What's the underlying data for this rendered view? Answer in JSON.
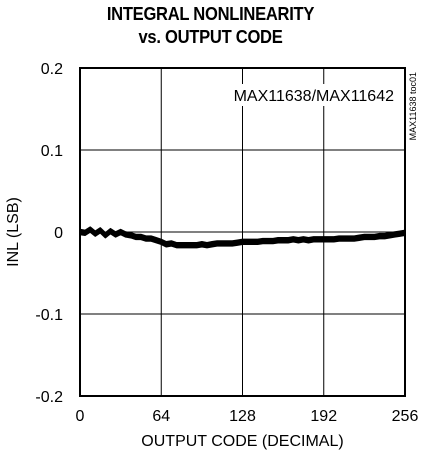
{
  "chart_data": {
    "type": "line",
    "title_lines": [
      "INTEGRAL NONLINEARITY",
      "vs. OUTPUT CODE"
    ],
    "xlabel": "OUTPUT CODE (DECIMAL)",
    "ylabel": "INL (LSB)",
    "xlim": [
      0,
      256
    ],
    "ylim": [
      -0.2,
      0.2
    ],
    "x_ticks": [
      0,
      64,
      128,
      192,
      256
    ],
    "x_tick_labels": [
      "0",
      "64",
      "128",
      "192",
      "256"
    ],
    "y_ticks": [
      0.2,
      0.1,
      0,
      -0.1,
      -0.2
    ],
    "y_tick_labels": [
      "0.2",
      "0.1",
      "0",
      "-0.1",
      "-0.2"
    ],
    "grid": true,
    "legend": "MAX11638/MAX11642",
    "side_label": "MAX11638 toc01",
    "series": [
      {
        "x": [
          0,
          4,
          8,
          12,
          16,
          20,
          24,
          28,
          32,
          36,
          40,
          44,
          48,
          52,
          56,
          60,
          64,
          68,
          72,
          76,
          80,
          84,
          88,
          92,
          96,
          100,
          104,
          108,
          112,
          116,
          120,
          124,
          128,
          132,
          136,
          140,
          144,
          148,
          152,
          156,
          160,
          164,
          168,
          172,
          176,
          180,
          184,
          188,
          192,
          196,
          200,
          204,
          208,
          212,
          216,
          220,
          224,
          228,
          232,
          236,
          240,
          244,
          248,
          252,
          256
        ],
        "y": [
          0.0,
          -0.001,
          0.003,
          -0.002,
          0.002,
          -0.004,
          0.001,
          -0.003,
          0.0,
          -0.003,
          -0.004,
          -0.006,
          -0.006,
          -0.008,
          -0.008,
          -0.01,
          -0.012,
          -0.015,
          -0.014,
          -0.016,
          -0.016,
          -0.016,
          -0.016,
          -0.016,
          -0.015,
          -0.016,
          -0.015,
          -0.014,
          -0.014,
          -0.014,
          -0.014,
          -0.013,
          -0.012,
          -0.012,
          -0.012,
          -0.012,
          -0.011,
          -0.011,
          -0.011,
          -0.01,
          -0.01,
          -0.01,
          -0.009,
          -0.01,
          -0.009,
          -0.01,
          -0.009,
          -0.009,
          -0.009,
          -0.009,
          -0.009,
          -0.008,
          -0.008,
          -0.008,
          -0.008,
          -0.007,
          -0.006,
          -0.006,
          -0.006,
          -0.005,
          -0.005,
          -0.004,
          -0.003,
          -0.002,
          -0.001
        ]
      }
    ]
  }
}
